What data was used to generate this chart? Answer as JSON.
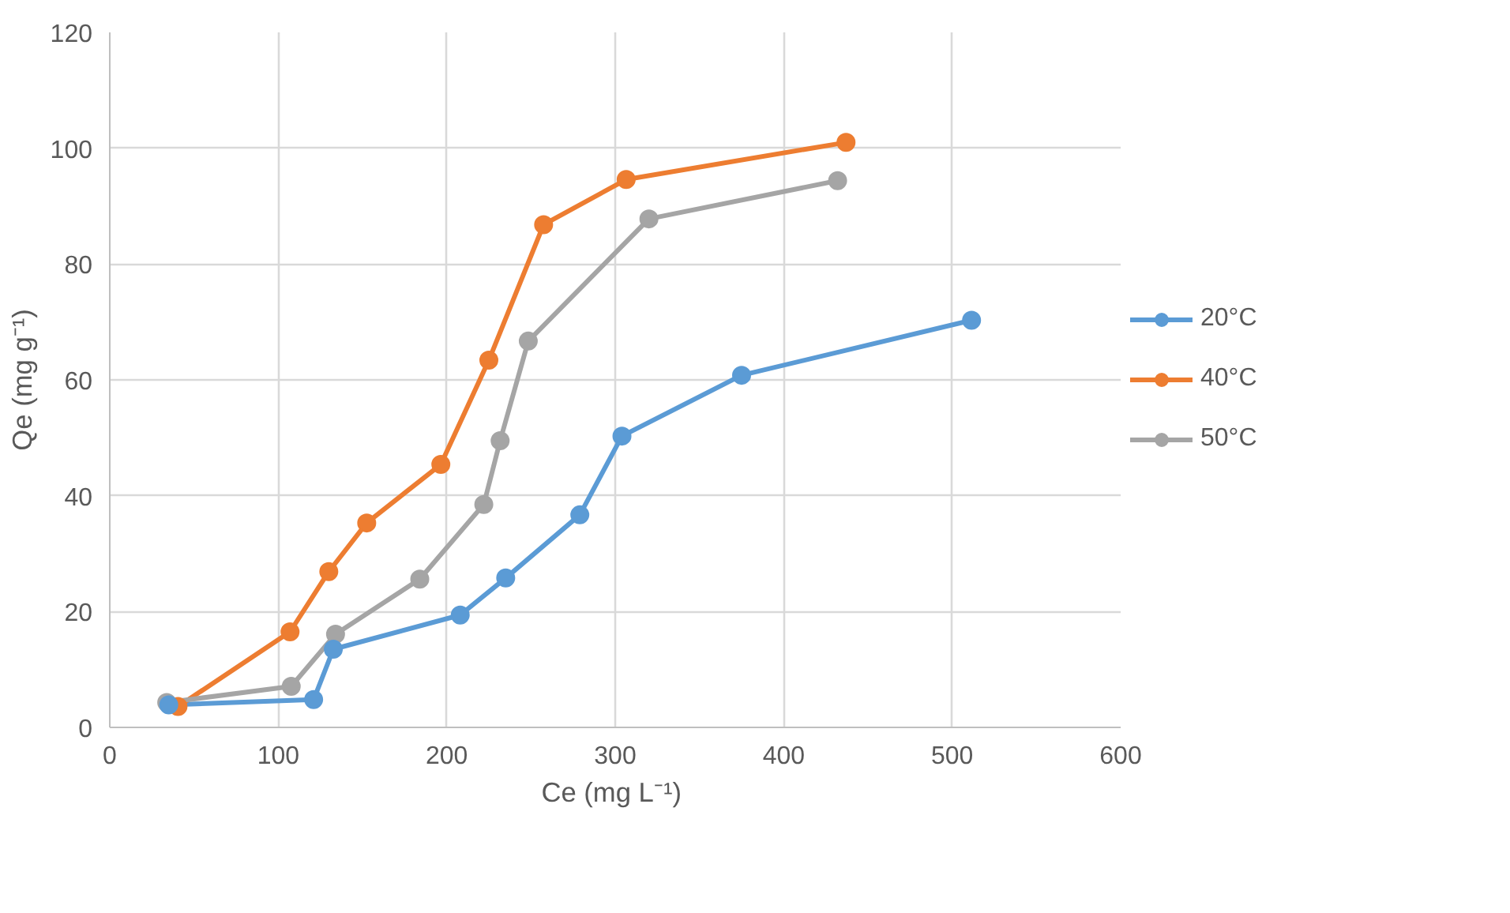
{
  "chart_data": {
    "type": "line",
    "xlabel": "Ce (mg  L⁻¹)",
    "ylabel": "Qe (mg g⁻¹)",
    "xlim": [
      0,
      600
    ],
    "xticks": [
      0,
      100,
      200,
      300,
      400,
      500,
      600
    ],
    "ylim": [
      0,
      120
    ],
    "yticks": [
      0,
      20,
      40,
      60,
      80,
      100,
      120
    ],
    "grid": true,
    "legend": "right",
    "marker": "circle",
    "line_style": "solid",
    "series": [
      {
        "name": "20°C",
        "color": "#5b9bd5",
        "x": [
          35,
          121,
          132.7,
          208,
          235,
          279,
          304,
          375,
          511.5
        ],
        "values": [
          3.9,
          4.8,
          13.5,
          19.4,
          25.8,
          36.7,
          50.3,
          60.8,
          70.3
        ]
      },
      {
        "name": "40°C",
        "color": "#ed7d31",
        "x": [
          40.5,
          107,
          130,
          152.5,
          196.5,
          225,
          257.5,
          306.5,
          437
        ],
        "values": [
          3.6,
          16.5,
          26.9,
          35.3,
          45.4,
          63.4,
          86.8,
          94.6,
          101
        ]
      },
      {
        "name": "50°C",
        "color": "#a5a5a5",
        "x": [
          33.8,
          107.7,
          134,
          184,
          222,
          231.7,
          248.4,
          320,
          432
        ],
        "values": [
          4.3,
          7.1,
          16.1,
          25.6,
          38.5,
          49.5,
          66.7,
          87.8,
          94.4
        ]
      }
    ]
  }
}
